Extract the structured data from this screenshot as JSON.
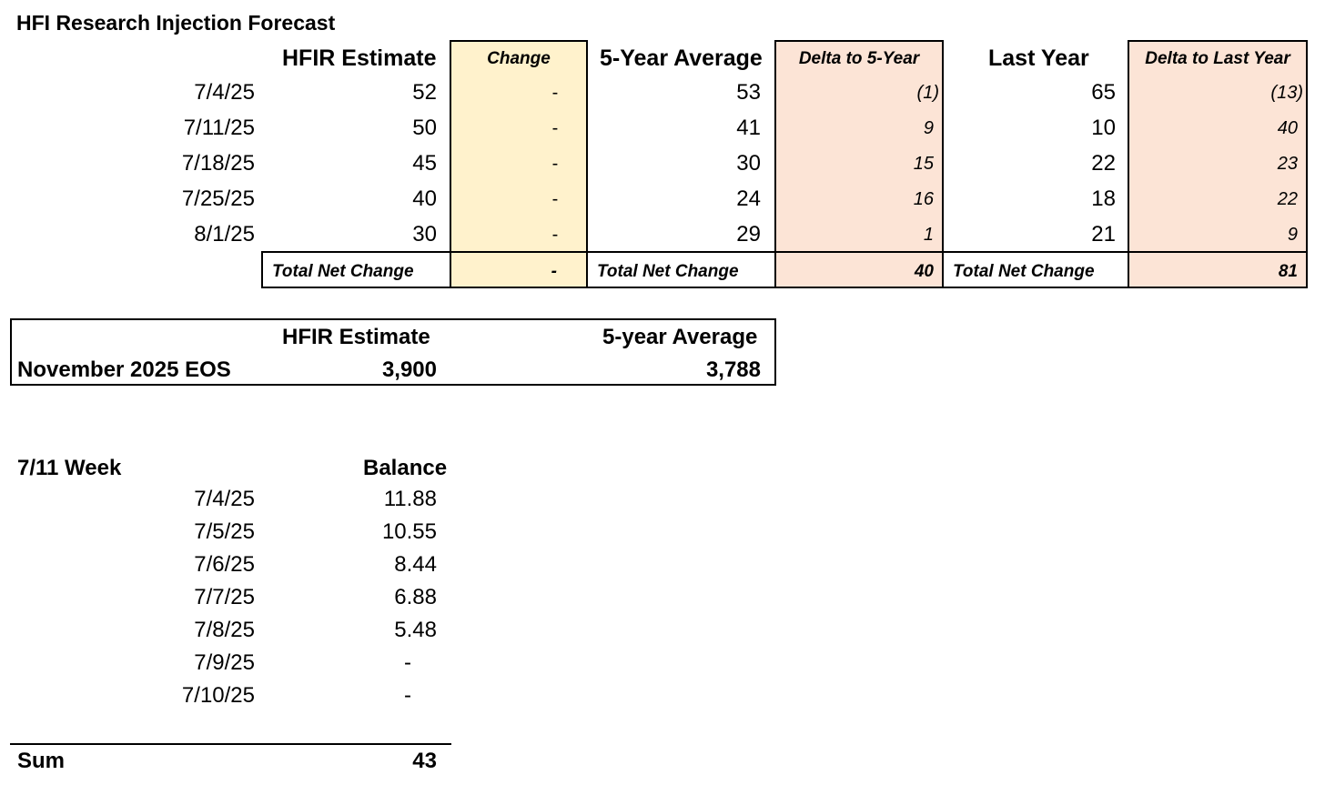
{
  "title": "HFI Research Injection Forecast",
  "forecast": {
    "headers": {
      "hfir": "HFIR Estimate",
      "change": "Change",
      "five_year": "5-Year Average",
      "delta_five": "Delta to 5-Year",
      "last_year": "Last Year",
      "delta_last": "Delta to Last Year"
    },
    "rows": [
      {
        "date": "7/4/25",
        "hfir": "52",
        "change": "-",
        "five": "53",
        "d5": "(1)",
        "last": "65",
        "dl": "(13)"
      },
      {
        "date": "7/11/25",
        "hfir": "50",
        "change": "-",
        "five": "41",
        "d5": "9",
        "last": "10",
        "dl": "40"
      },
      {
        "date": "7/18/25",
        "hfir": "45",
        "change": "-",
        "five": "30",
        "d5": "15",
        "last": "22",
        "dl": "23"
      },
      {
        "date": "7/25/25",
        "hfir": "40",
        "change": "-",
        "five": "24",
        "d5": "16",
        "last": "18",
        "dl": "22"
      },
      {
        "date": "8/1/25",
        "hfir": "30",
        "change": "-",
        "five": "29",
        "d5": "1",
        "last": "21",
        "dl": "9"
      }
    ],
    "totals": {
      "label1": "Total Net Change",
      "change": "-",
      "label2": "Total Net Change",
      "d5": "40",
      "label3": "Total Net Change",
      "dl": "81"
    }
  },
  "eos": {
    "hfir_header": "HFIR Estimate",
    "avg_header": "5-year Average",
    "row_label": "November 2025 EOS",
    "hfir_value": "3,900",
    "avg_value": "3,788"
  },
  "balance": {
    "week_label": "7/11 Week",
    "col_header": "Balance",
    "rows": [
      {
        "date": "7/4/25",
        "value": "11.88"
      },
      {
        "date": "7/5/25",
        "value": "10.55"
      },
      {
        "date": "7/6/25",
        "value": "8.44"
      },
      {
        "date": "7/7/25",
        "value": "6.88"
      },
      {
        "date": "7/8/25",
        "value": "5.48"
      },
      {
        "date": "7/9/25",
        "value": "-"
      },
      {
        "date": "7/10/25",
        "value": "-"
      }
    ],
    "sum_label": "Sum",
    "sum_value": "43"
  },
  "colors": {
    "change_fill": "#fff2cc",
    "delta_fill": "#fce4d6"
  }
}
